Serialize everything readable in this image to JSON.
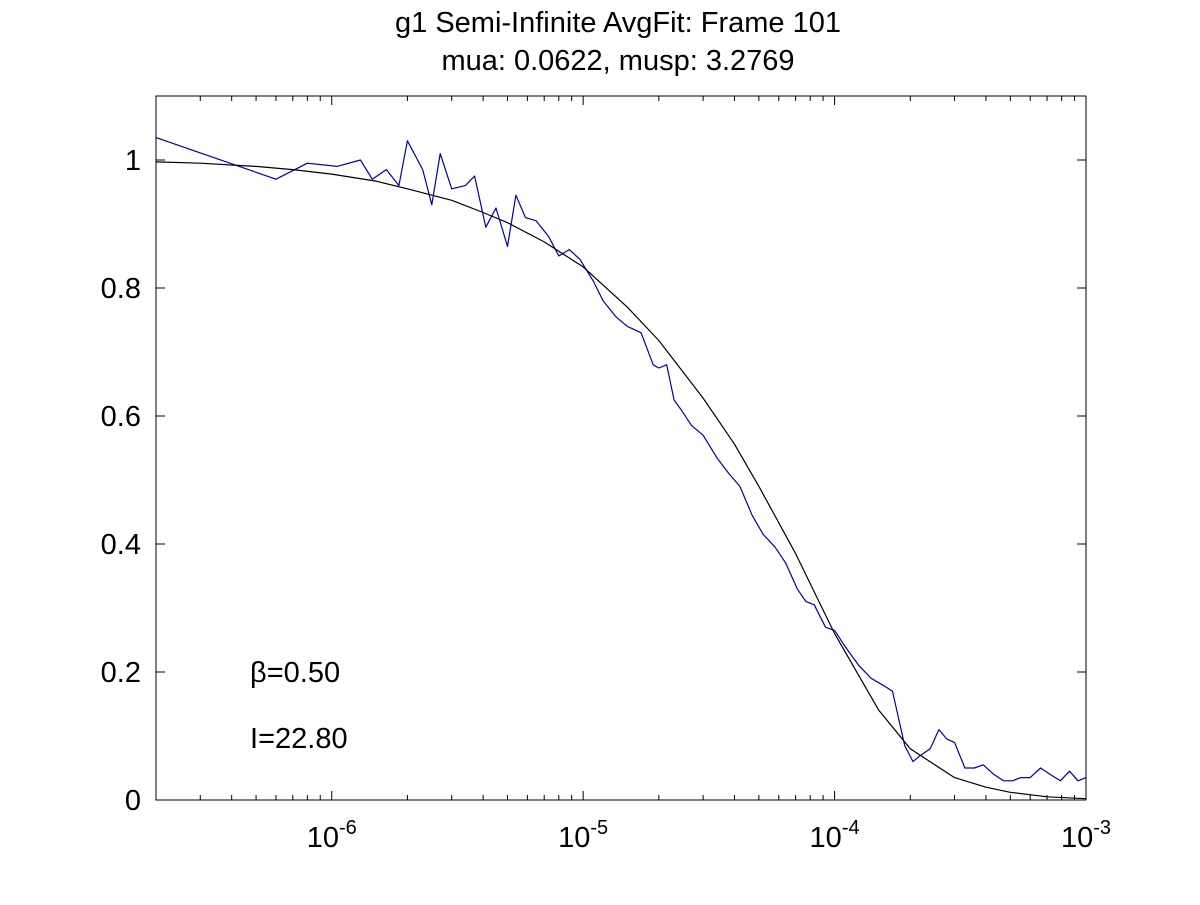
{
  "chart_data": {
    "type": "line",
    "title": "g1 Semi-Infinite AvgFit: Frame 101",
    "subtitle": "mua: 0.0622, musp: 3.2769",
    "xlabel": "",
    "ylabel": "",
    "x_scale": "log",
    "xlim": [
      2e-07,
      0.001
    ],
    "ylim": [
      0,
      1.1
    ],
    "grid": false,
    "x_ticks": [
      {
        "value": 1e-06,
        "base": "10",
        "exp": "-6"
      },
      {
        "value": 1e-05,
        "base": "10",
        "exp": "-5"
      },
      {
        "value": 0.0001,
        "base": "10",
        "exp": "-4"
      },
      {
        "value": 0.001,
        "base": "10",
        "exp": "-3"
      }
    ],
    "y_ticks": [
      {
        "value": 0,
        "label": "0"
      },
      {
        "value": 0.2,
        "label": "0.2"
      },
      {
        "value": 0.4,
        "label": "0.4"
      },
      {
        "value": 0.6,
        "label": "0.6"
      },
      {
        "value": 0.8,
        "label": "0.8"
      },
      {
        "value": 1,
        "label": "1"
      }
    ],
    "annotations": [
      {
        "text": "β=0.50",
        "x": 5e-07,
        "y": 0.2
      },
      {
        "text": "I=22.80",
        "x": 5e-07,
        "y": 0.097
      }
    ],
    "series": [
      {
        "color": "#0000aa",
        "x": [
          2e-07,
          6e-07,
          8e-07,
          1.05e-06,
          1.3e-06,
          1.45e-06,
          1.65e-06,
          1.85e-06,
          2e-06,
          2.3e-06,
          2.5e-06,
          2.7e-06,
          3e-06,
          3.4e-06,
          3.7e-06,
          4.1e-06,
          4.5e-06,
          5e-06,
          5.4e-06,
          5.9e-06,
          6.5e-06,
          7.3e-06,
          8e-06,
          8.8e-06,
          9.7e-06,
          1.1e-05,
          1.2e-05,
          1.35e-05,
          1.5e-05,
          1.7e-05,
          1.9e-05,
          2e-05,
          2.15e-05,
          2.3e-05,
          2.45e-05,
          2.7e-05,
          3e-05,
          3.4e-05,
          3.8e-05,
          4.2e-05,
          4.7e-05,
          5.2e-05,
          5.8e-05,
          6.4e-05,
          7.1e-05,
          7.7e-05,
          8.3e-05,
          9.2e-05,
          0.0001,
          0.00011,
          0.000125,
          0.00014,
          0.000155,
          0.00017,
          0.00019,
          0.000205,
          0.00022,
          0.00024,
          0.00026,
          0.00028,
          0.0003,
          0.00033,
          0.00036,
          0.00039,
          0.00043,
          0.00047,
          0.00051,
          0.00055,
          0.0006,
          0.00066,
          0.00072,
          0.00079,
          0.00086,
          0.00093,
          0.001
        ],
        "values": [
          1.035,
          0.97,
          0.995,
          0.99,
          1.0,
          0.97,
          0.985,
          0.96,
          1.03,
          0.985,
          0.93,
          1.01,
          0.955,
          0.96,
          0.975,
          0.895,
          0.925,
          0.865,
          0.945,
          0.91,
          0.905,
          0.88,
          0.85,
          0.86,
          0.845,
          0.81,
          0.78,
          0.755,
          0.74,
          0.73,
          0.68,
          0.675,
          0.68,
          0.625,
          0.61,
          0.585,
          0.57,
          0.535,
          0.51,
          0.49,
          0.445,
          0.415,
          0.395,
          0.37,
          0.33,
          0.31,
          0.305,
          0.27,
          0.265,
          0.24,
          0.21,
          0.19,
          0.18,
          0.17,
          0.085,
          0.06,
          0.07,
          0.08,
          0.11,
          0.095,
          0.09,
          0.05,
          0.05,
          0.055,
          0.04,
          0.03,
          0.03,
          0.035,
          0.035,
          0.05,
          0.04,
          0.03,
          0.045,
          0.03,
          0.035
        ]
      },
      {
        "color": "#000000",
        "x": [
          2e-07,
          3e-07,
          5e-07,
          7e-07,
          1e-06,
          1.5e-06,
          2e-06,
          3e-06,
          4e-06,
          5e-06,
          7e-06,
          1e-05,
          1.5e-05,
          2e-05,
          3e-05,
          4e-05,
          5e-05,
          7e-05,
          0.0001,
          0.00015,
          0.0002,
          0.0003,
          0.0004,
          0.0005,
          0.0007,
          0.001
        ],
        "values": [
          0.997,
          0.995,
          0.99,
          0.985,
          0.978,
          0.967,
          0.955,
          0.937,
          0.918,
          0.902,
          0.872,
          0.833,
          0.77,
          0.718,
          0.628,
          0.556,
          0.49,
          0.385,
          0.26,
          0.14,
          0.08,
          0.035,
          0.02,
          0.012,
          0.005,
          0.002
        ]
      }
    ]
  }
}
